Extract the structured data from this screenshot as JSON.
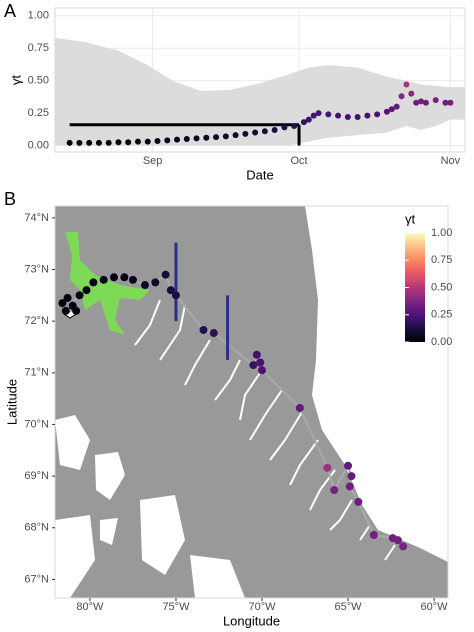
{
  "chart_data": [
    {
      "type": "line",
      "panel_label": "A",
      "xlabel": "Date",
      "ylabel": "γt",
      "xlim": [
        224,
        308
      ],
      "xticks": [
        {
          "value": 244,
          "label": "Sep"
        },
        {
          "value": 274,
          "label": "Oct"
        },
        {
          "value": 305,
          "label": "Nov"
        }
      ],
      "ylim": [
        -0.05,
        1.06
      ],
      "yticks": [
        {
          "value": 0,
          "label": "0.00"
        },
        {
          "value": 0.25,
          "label": "0.25"
        },
        {
          "value": 0.5,
          "label": "0.50"
        },
        {
          "value": 0.75,
          "label": "0.75"
        },
        {
          "value": 1,
          "label": "1.00"
        }
      ],
      "grid": true,
      "colormap": "magma",
      "color_lim": [
        0,
        1
      ],
      "x": [
        227,
        229,
        231,
        233,
        235,
        237,
        239,
        241,
        243,
        245,
        247,
        249,
        251,
        253,
        255,
        257,
        259,
        261,
        263,
        265,
        267,
        269,
        271,
        273,
        275,
        276,
        277,
        278,
        280,
        282,
        284,
        286,
        288,
        290,
        292,
        293,
        294,
        295,
        296,
        297,
        298,
        299,
        300,
        302,
        304,
        305
      ],
      "values": [
        0.02,
        0.02,
        0.02,
        0.02,
        0.02,
        0.025,
        0.025,
        0.03,
        0.03,
        0.035,
        0.04,
        0.045,
        0.05,
        0.055,
        0.06,
        0.065,
        0.07,
        0.08,
        0.09,
        0.1,
        0.11,
        0.12,
        0.14,
        0.15,
        0.18,
        0.2,
        0.23,
        0.25,
        0.24,
        0.23,
        0.22,
        0.22,
        0.23,
        0.24,
        0.26,
        0.28,
        0.3,
        0.38,
        0.47,
        0.4,
        0.33,
        0.34,
        0.33,
        0.35,
        0.33,
        0.33
      ],
      "band": {
        "color": "#dcdcdc",
        "x": [
          224,
          230,
          237,
          243,
          248,
          254,
          260,
          266,
          272,
          276,
          280,
          286,
          292,
          296,
          299,
          302,
          305,
          308
        ],
        "upper": [
          0.83,
          0.8,
          0.73,
          0.62,
          0.5,
          0.42,
          0.43,
          0.48,
          0.55,
          0.6,
          0.62,
          0.6,
          0.53,
          0.5,
          0.47,
          0.46,
          0.45,
          0.45
        ],
        "lower": [
          0,
          0,
          0,
          0,
          0,
          0,
          0,
          0,
          0,
          0.03,
          0.06,
          0.08,
          0.1,
          0.15,
          0.12,
          0.15,
          0.2,
          0.2
        ]
      },
      "reference": {
        "x": [
          227,
          274
        ],
        "y": 0.16,
        "color": "#000000"
      }
    },
    {
      "type": "map",
      "panel_label": "B",
      "xlabel": "Longitude",
      "ylabel": "Latitude",
      "xlim": [
        -82.03,
        -59.19
      ],
      "xticks": [
        {
          "value": -80,
          "label": "80°W"
        },
        {
          "value": -75,
          "label": "75°W"
        },
        {
          "value": -70,
          "label": "70°W"
        },
        {
          "value": -65,
          "label": "65°W"
        },
        {
          "value": -60,
          "label": "60°W"
        }
      ],
      "ylim": [
        66.64,
        74.23
      ],
      "yticks": [
        {
          "value": 67,
          "label": "67°N"
        },
        {
          "value": 68,
          "label": "68°N"
        },
        {
          "value": 69,
          "label": "69°N"
        },
        {
          "value": 70,
          "label": "70°N"
        },
        {
          "value": 71,
          "label": "71°N"
        },
        {
          "value": 72,
          "label": "72°N"
        },
        {
          "value": 73,
          "label": "73°N"
        },
        {
          "value": 74,
          "label": "74°N"
        }
      ],
      "colormap": "magma",
      "track_color": "#a9a9a9",
      "colorbar": {
        "title": "γt",
        "lim": [
          0,
          1
        ],
        "ticks": [
          {
            "value": 1,
            "label": "1.00"
          },
          {
            "value": 0.75,
            "label": "0.75"
          },
          {
            "value": 0.5,
            "label": "0.50"
          },
          {
            "value": 0.25,
            "label": "0.25"
          },
          {
            "value": 0,
            "label": "0.00"
          }
        ]
      },
      "lon": [
        -81.6,
        -81.3,
        -81.0,
        -80.8,
        -81.4,
        -80.6,
        -80.2,
        -79.8,
        -79.2,
        -78.6,
        -78.0,
        -77.5,
        -76.8,
        -76.2,
        -75.6,
        -75.3,
        -75.0,
        -73.4,
        -72.8,
        -70.5,
        -70.3,
        -70.1,
        -70.0,
        -67.8,
        -66.2,
        -65.8,
        -65.0,
        -64.8,
        -64.9,
        -64.4,
        -63.5,
        -62.4,
        -62.1,
        -61.8
      ],
      "lat": [
        72.35,
        72.45,
        72.3,
        72.2,
        72.2,
        72.5,
        72.6,
        72.75,
        72.8,
        72.85,
        72.85,
        72.8,
        72.7,
        72.75,
        72.9,
        72.6,
        72.5,
        71.83,
        71.77,
        71.15,
        71.35,
        71.2,
        71.05,
        70.32,
        69.16,
        68.73,
        69.2,
        69.0,
        68.8,
        68.5,
        67.86,
        67.8,
        67.76,
        67.64
      ],
      "values": [
        0.02,
        0.02,
        0.02,
        0.02,
        0.02,
        0.02,
        0.03,
        0.03,
        0.03,
        0.03,
        0.04,
        0.05,
        0.07,
        0.08,
        0.1,
        0.11,
        0.12,
        0.15,
        0.17,
        0.2,
        0.22,
        0.23,
        0.24,
        0.3,
        0.45,
        0.35,
        0.3,
        0.32,
        0.33,
        0.33,
        0.34,
        0.33,
        0.33,
        0.35
      ],
      "segments": {
        "color": "#2b2f8c",
        "lon": [
          -75,
          -72
        ],
        "lat_low": [
          72.0,
          71.25
        ],
        "lat_high": [
          73.52,
          72.5
        ]
      }
    }
  ]
}
